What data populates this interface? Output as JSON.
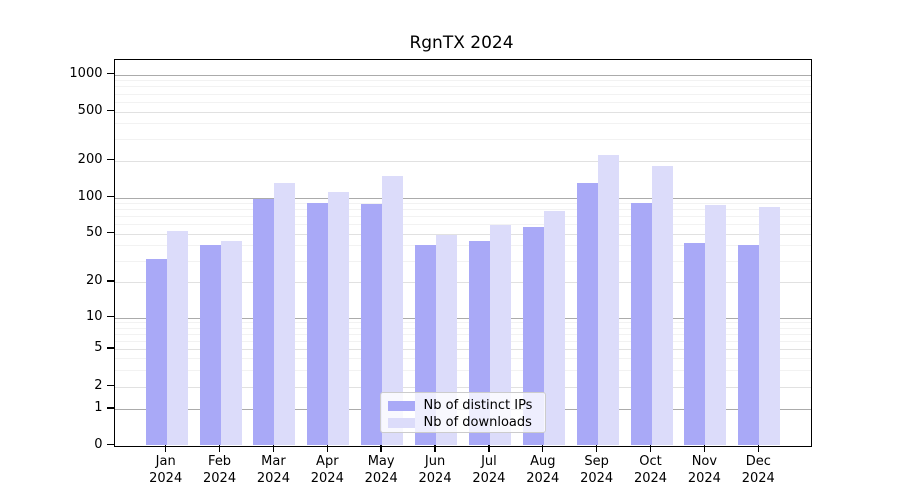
{
  "title": "RgnTX 2024",
  "colors": {
    "distinct_ips": "#a9a9f7",
    "downloads": "#dcdcfa",
    "grid_major": "#ababab",
    "grid_labeled": "#e1e1e1",
    "grid_minor": "#f2f2f2",
    "axis": "#000000"
  },
  "legend": {
    "entries": [
      {
        "label": "Nb of distinct IPs",
        "color_key": "distinct_ips"
      },
      {
        "label": "Nb of downloads",
        "color_key": "downloads"
      }
    ],
    "position": "lower center"
  },
  "chart_data": {
    "type": "bar",
    "title": "RgnTX 2024",
    "categories": [
      "Jan 2024",
      "Feb 2024",
      "Mar 2024",
      "Apr 2024",
      "May 2024",
      "Jun 2024",
      "Jul 2024",
      "Aug 2024",
      "Sep 2024",
      "Oct 2024",
      "Nov 2024",
      "Dec 2024"
    ],
    "series": [
      {
        "name": "Nb of distinct IPs",
        "color_key": "distinct_ips",
        "values": [
          31,
          40,
          97,
          90,
          89,
          40,
          43,
          57,
          130,
          90,
          42,
          40
        ]
      },
      {
        "name": "Nb of downloads",
        "color_key": "downloads",
        "values": [
          52,
          43,
          131,
          111,
          149,
          49,
          59,
          77,
          220,
          180,
          87,
          84
        ]
      }
    ],
    "xlabel": "",
    "ylabel": "",
    "yscale": "symlog",
    "yticks": [
      0,
      1,
      2,
      5,
      10,
      20,
      50,
      100,
      200,
      500,
      1000
    ],
    "ylim": [
      0,
      1300
    ],
    "grid": true,
    "legend_position": "lower center"
  }
}
